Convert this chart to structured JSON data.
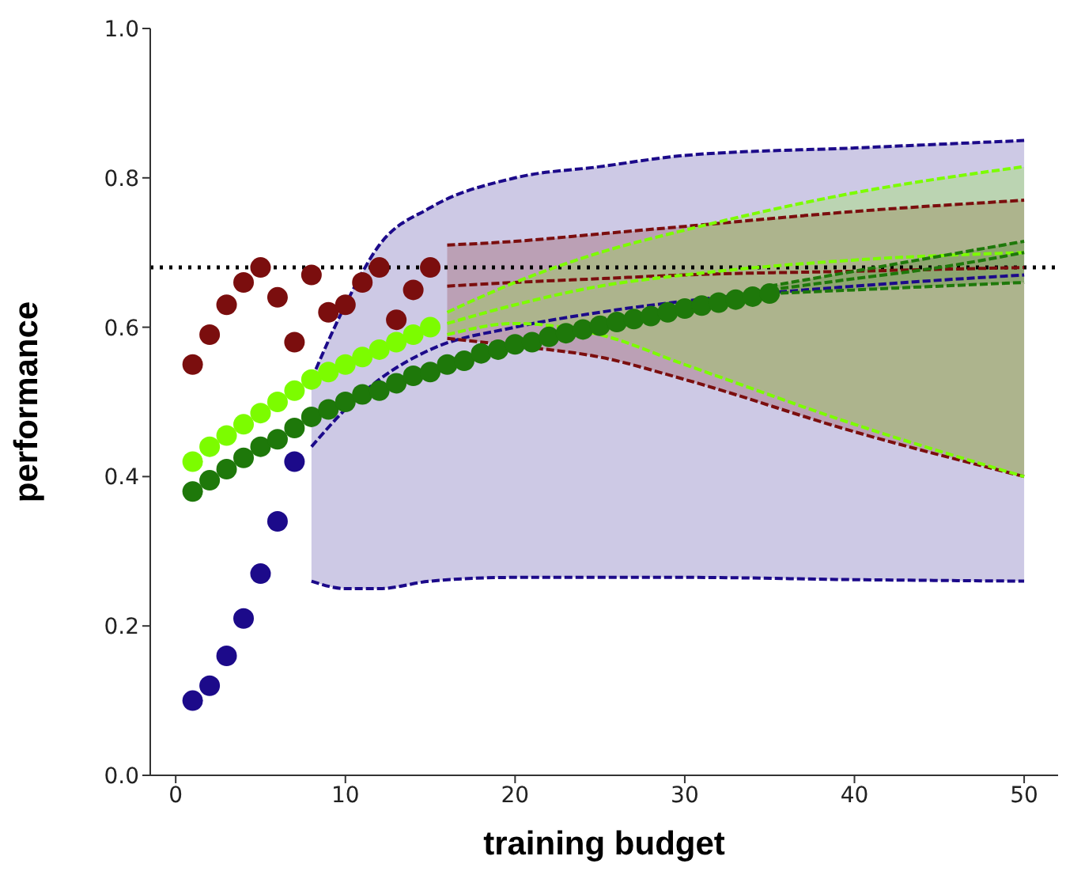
{
  "chart_data": {
    "type": "scatter",
    "xlabel": "training budget",
    "ylabel": "performance",
    "xlim": [
      -1.5,
      52
    ],
    "xticks": [
      0,
      10,
      20,
      30,
      40,
      50
    ],
    "ylim": [
      0,
      1
    ],
    "yticks": [
      {
        "value": 0,
        "label": "0.0"
      },
      {
        "value": 0.2,
        "label": "0.2"
      },
      {
        "value": 0.4,
        "label": "0.4"
      },
      {
        "value": 0.6,
        "label": "0.6"
      },
      {
        "value": 0.8,
        "label": "0.8"
      },
      {
        "value": 1,
        "label": "1.0"
      }
    ],
    "grid": false,
    "legend": false,
    "ref_lines": [
      {
        "axis": "y",
        "value": 0.68,
        "color": "#000000",
        "line_style": "dotted"
      }
    ],
    "series": [
      {
        "type": "scatter",
        "color": "#7b0e0e",
        "marker": "circle",
        "x": [
          1,
          2,
          3,
          4,
          5,
          6,
          7,
          8,
          9,
          10,
          11,
          12,
          13,
          14,
          15
        ],
        "values": [
          0.55,
          0.59,
          0.63,
          0.66,
          0.68,
          0.64,
          0.58,
          0.67,
          0.62,
          0.63,
          0.66,
          0.68,
          0.61,
          0.65,
          0.68
        ]
      },
      {
        "type": "scatter",
        "color": "#1c0a8a",
        "marker": "circle",
        "x": [
          1,
          2,
          3,
          4,
          5,
          6,
          7
        ],
        "values": [
          0.1,
          0.12,
          0.16,
          0.21,
          0.27,
          0.34,
          0.42
        ]
      },
      {
        "type": "scatter",
        "color": "#7cfc00",
        "marker": "circle",
        "x": [
          1,
          2,
          3,
          4,
          5,
          6,
          7,
          8,
          9,
          10,
          11,
          12,
          13,
          14,
          15
        ],
        "values": [
          0.42,
          0.44,
          0.455,
          0.47,
          0.485,
          0.5,
          0.515,
          0.53,
          0.54,
          0.55,
          0.56,
          0.57,
          0.58,
          0.59,
          0.6
        ]
      },
      {
        "type": "scatter",
        "color": "#1e780a",
        "marker": "circle",
        "x": [
          1,
          2,
          3,
          4,
          5,
          6,
          7,
          8,
          9,
          10,
          11,
          12,
          13,
          14,
          15,
          16,
          17,
          18,
          19,
          20,
          21,
          22,
          23,
          24,
          25,
          26,
          27,
          28,
          29,
          30,
          31,
          32,
          33,
          34,
          35
        ],
        "values": [
          0.38,
          0.395,
          0.41,
          0.425,
          0.44,
          0.45,
          0.465,
          0.48,
          0.49,
          0.5,
          0.51,
          0.515,
          0.525,
          0.535,
          0.54,
          0.55,
          0.555,
          0.565,
          0.57,
          0.577,
          0.58,
          0.587,
          0.592,
          0.597,
          0.602,
          0.607,
          0.611,
          0.615,
          0.62,
          0.625,
          0.629,
          0.633,
          0.637,
          0.641,
          0.645
        ]
      },
      {
        "type": "line",
        "color": "#1c0a8a",
        "marker": "none",
        "line_style": "dashed",
        "x": [
          8,
          10,
          12,
          15,
          20,
          25,
          30,
          40,
          50
        ],
        "values": [
          0.44,
          0.49,
          0.53,
          0.57,
          0.6,
          0.62,
          0.635,
          0.655,
          0.67
        ],
        "lower": [
          0.26,
          0.25,
          0.25,
          0.26,
          0.265,
          0.265,
          0.265,
          0.262,
          0.26
        ],
        "upper": [
          0.53,
          0.63,
          0.71,
          0.76,
          0.8,
          0.815,
          0.83,
          0.84,
          0.85
        ]
      },
      {
        "type": "line",
        "color": "#7b0e0e",
        "marker": "none",
        "line_style": "dashed",
        "x": [
          16,
          20,
          25,
          30,
          40,
          50
        ],
        "values": [
          0.655,
          0.66,
          0.665,
          0.67,
          0.675,
          0.68
        ],
        "lower": [
          0.585,
          0.575,
          0.56,
          0.53,
          0.46,
          0.4
        ],
        "upper": [
          0.71,
          0.715,
          0.725,
          0.735,
          0.755,
          0.77
        ]
      },
      {
        "type": "line",
        "color": "#7cfc00",
        "marker": "none",
        "line_style": "dashed",
        "x": [
          16,
          20,
          25,
          30,
          40,
          50
        ],
        "values": [
          0.605,
          0.63,
          0.655,
          0.67,
          0.69,
          0.7
        ],
        "lower": [
          0.59,
          0.605,
          0.59,
          0.55,
          0.47,
          0.4
        ],
        "upper": [
          0.62,
          0.66,
          0.7,
          0.73,
          0.78,
          0.815
        ]
      },
      {
        "type": "line",
        "color": "#1e780a",
        "marker": "none",
        "line_style": "dashed",
        "x": [
          35,
          40,
          45,
          50
        ],
        "values": [
          0.65,
          0.665,
          0.68,
          0.7
        ],
        "lower": [
          0.645,
          0.65,
          0.655,
          0.66
        ],
        "upper": [
          0.655,
          0.675,
          0.695,
          0.715
        ]
      },
      {
        "type": "line",
        "color": "#1c0a8a",
        "marker": "none",
        "line_style": "dashed",
        "x": [
          8,
          10,
          12,
          15,
          20,
          25,
          30,
          40,
          50
        ],
        "values": [
          0.26,
          0.25,
          0.25,
          0.26,
          0.265,
          0.265,
          0.265,
          0.262,
          0.26
        ]
      },
      {
        "type": "line",
        "color": "#1c0a8a",
        "marker": "none",
        "line_style": "dashed",
        "x": [
          8,
          10,
          12,
          15,
          20,
          25,
          30,
          40,
          50
        ],
        "values": [
          0.53,
          0.63,
          0.71,
          0.76,
          0.8,
          0.815,
          0.83,
          0.84,
          0.85
        ]
      },
      {
        "type": "line",
        "color": "#7b0e0e",
        "marker": "none",
        "line_style": "dashed",
        "x": [
          16,
          20,
          25,
          30,
          40,
          50
        ],
        "values": [
          0.585,
          0.575,
          0.56,
          0.53,
          0.46,
          0.4
        ]
      },
      {
        "type": "line",
        "color": "#7b0e0e",
        "marker": "none",
        "line_style": "dashed",
        "x": [
          16,
          20,
          25,
          30,
          40,
          50
        ],
        "values": [
          0.71,
          0.715,
          0.725,
          0.735,
          0.755,
          0.77
        ]
      },
      {
        "type": "line",
        "color": "#7cfc00",
        "marker": "none",
        "line_style": "dashed",
        "x": [
          16,
          20,
          25,
          30,
          40,
          50
        ],
        "values": [
          0.59,
          0.605,
          0.59,
          0.55,
          0.47,
          0.4
        ]
      },
      {
        "type": "line",
        "color": "#7cfc00",
        "marker": "none",
        "line_style": "dashed",
        "x": [
          16,
          20,
          25,
          30,
          40,
          50
        ],
        "values": [
          0.62,
          0.66,
          0.7,
          0.73,
          0.78,
          0.815
        ]
      },
      {
        "type": "line",
        "color": "#1e780a",
        "marker": "none",
        "line_style": "dashed",
        "x": [
          35,
          40,
          45,
          50
        ],
        "values": [
          0.645,
          0.65,
          0.655,
          0.66
        ]
      },
      {
        "type": "line",
        "color": "#1e780a",
        "marker": "none",
        "line_style": "dashed",
        "x": [
          35,
          40,
          45,
          50
        ],
        "values": [
          0.655,
          0.675,
          0.695,
          0.715
        ]
      }
    ]
  }
}
